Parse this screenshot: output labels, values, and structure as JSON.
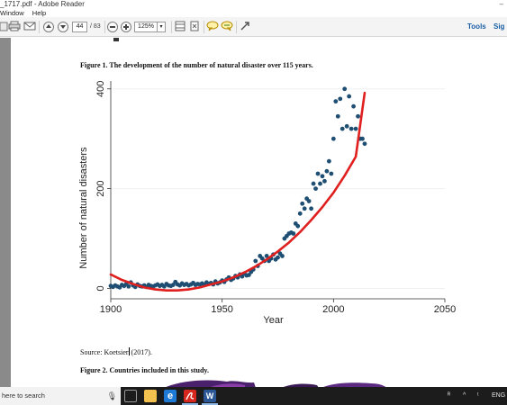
{
  "window": {
    "title": "_1717.pdf - Adobe Reader",
    "minimize": "–"
  },
  "menu": [
    "Window",
    "Help"
  ],
  "toolbar": {
    "page_current": "44",
    "page_total": "/ 83",
    "zoom": "125%",
    "tools_label": "Tools",
    "sign_label": "Sig"
  },
  "document": {
    "figure1_caption": "Figure 1. The development of the number of natural disaster over 115 years.",
    "source_prefix": "Source: Koetsier",
    "source_suffix": " (2017).",
    "figure2_caption": "Figure 2. Countries included in this study."
  },
  "chart_data": {
    "type": "scatter",
    "xlabel": "Year",
    "ylabel": "Number of natural disasters",
    "xlim": [
      1900,
      2050
    ],
    "ylim": [
      -10,
      405
    ],
    "xticks": [
      1900,
      1950,
      2000,
      2050
    ],
    "yticks": [
      0,
      200,
      400
    ],
    "grid": true,
    "colors": {
      "points": "#1f4e73",
      "fit": "#e01f1f",
      "grid": "#eef0f4"
    },
    "points": {
      "x": [
        1900,
        1901,
        1902,
        1903,
        1904,
        1905,
        1906,
        1907,
        1908,
        1909,
        1910,
        1911,
        1912,
        1913,
        1914,
        1915,
        1916,
        1917,
        1918,
        1919,
        1920,
        1921,
        1922,
        1923,
        1924,
        1925,
        1926,
        1927,
        1928,
        1929,
        1930,
        1931,
        1932,
        1933,
        1934,
        1935,
        1936,
        1937,
        1938,
        1939,
        1940,
        1941,
        1942,
        1943,
        1944,
        1945,
        1946,
        1947,
        1948,
        1949,
        1950,
        1951,
        1952,
        1953,
        1954,
        1955,
        1956,
        1957,
        1958,
        1959,
        1960,
        1961,
        1962,
        1963,
        1964,
        1965,
        1966,
        1967,
        1968,
        1969,
        1970,
        1971,
        1972,
        1973,
        1974,
        1975,
        1976,
        1977,
        1978,
        1979,
        1980,
        1981,
        1982,
        1983,
        1984,
        1985,
        1986,
        1987,
        1988,
        1989,
        1990,
        1991,
        1992,
        1993,
        1994,
        1995,
        1996,
        1997,
        1998,
        1999,
        2000,
        2001,
        2002,
        2003,
        2004,
        2005,
        2006,
        2007,
        2008,
        2009,
        2010,
        2011,
        2012,
        2013,
        2014
      ],
      "y": [
        5,
        3,
        6,
        4,
        2,
        7,
        5,
        9,
        4,
        12,
        6,
        3,
        8,
        5,
        4,
        6,
        3,
        7,
        5,
        4,
        6,
        8,
        5,
        7,
        4,
        9,
        6,
        5,
        7,
        13,
        8,
        6,
        10,
        7,
        9,
        6,
        8,
        11,
        7,
        9,
        8,
        10,
        7,
        12,
        9,
        11,
        8,
        14,
        10,
        12,
        16,
        13,
        18,
        22,
        17,
        20,
        25,
        22,
        28,
        24,
        30,
        26,
        27,
        33,
        38,
        55,
        45,
        65,
        60,
        55,
        65,
        55,
        60,
        68,
        58,
        62,
        70,
        65,
        100,
        105,
        110,
        112,
        110,
        130,
        125,
        150,
        170,
        160,
        180,
        175,
        160,
        210,
        200,
        230,
        210,
        225,
        215,
        235,
        255,
        230,
        300,
        375,
        345,
        380,
        320,
        400,
        325,
        385,
        320,
        365,
        320,
        345,
        300,
        300,
        290
      ]
    },
    "fit": {
      "x": [
        1900,
        1905,
        1910,
        1915,
        1920,
        1925,
        1930,
        1935,
        1940,
        1945,
        1950,
        1955,
        1960,
        1965,
        1970,
        1975,
        1980,
        1985,
        1990,
        1995,
        2000,
        2005,
        2010,
        2014
      ],
      "y": [
        28,
        17,
        9,
        2,
        -2,
        -4,
        -4,
        -2,
        2,
        8,
        14,
        22,
        32,
        44,
        58,
        74,
        92,
        113,
        137,
        163,
        192,
        226,
        264,
        392
      ]
    }
  },
  "taskbar": {
    "search_placeholder": "here to search",
    "tray": {
      "person": "ᴿ",
      "caret": "^",
      "lang": "ENG"
    }
  }
}
